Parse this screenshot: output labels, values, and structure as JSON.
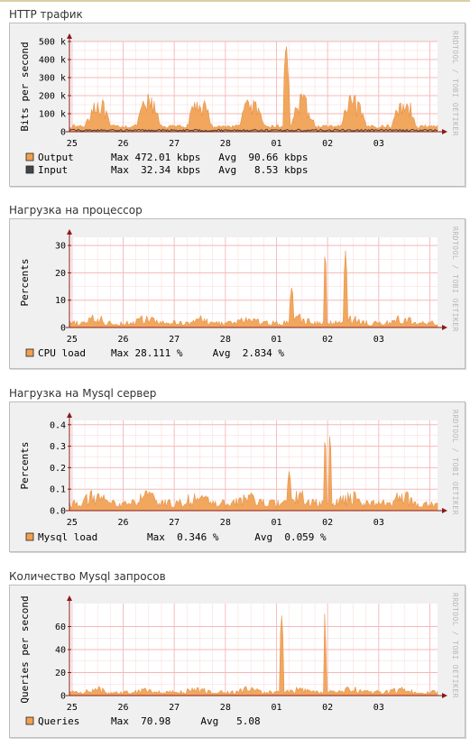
{
  "sections": [
    {
      "title": "HTTP трафик"
    },
    {
      "title": "Нагрузка на процессор"
    },
    {
      "title": "Нагрузка на Mysql сервер"
    },
    {
      "title": "Количество Mysql запросов"
    }
  ],
  "watermark": "RRDTOOL / TOBI OETIKER",
  "colors": {
    "series_fill": "#f0a050",
    "input_line": "#444444",
    "grid": "#f4b8b8",
    "axis": "#8b1a1a",
    "panel_bg": "#f0f0f0",
    "plot_bg": "#ffffff"
  },
  "chart_data": [
    {
      "type": "area",
      "ylabel": "Bits per second",
      "ylim": [
        0,
        500000
      ],
      "yticks": [
        0,
        100000,
        200000,
        300000,
        400000,
        500000
      ],
      "ytick_labels": [
        "0",
        "100 k",
        "200 k",
        "300 k",
        "400 k",
        "500 k"
      ],
      "x_categories": [
        "25",
        "26",
        "27",
        "28",
        "01",
        "02",
        "03"
      ],
      "grid": true,
      "series": [
        {
          "name": "Output",
          "kind": "area",
          "color": "#f0a050",
          "legend_stats": "Max 472.01 kbps   Avg  90.66 kbps",
          "max": 472010,
          "avg": 90660,
          "peak_day": 4.2,
          "spike_days": [
            4.18,
            4.22
          ]
        },
        {
          "name": "Input",
          "kind": "line",
          "color": "#444444",
          "legend_stats": "Max  32.34 kbps   Avg   8.53 kbps",
          "max": 32340,
          "avg": 8530
        }
      ]
    },
    {
      "type": "area",
      "ylabel": "Percents",
      "ylim": [
        0,
        33
      ],
      "yticks": [
        0,
        10,
        20,
        30
      ],
      "ytick_labels": [
        "0",
        "10",
        "20",
        "30"
      ],
      "x_categories": [
        "25",
        "26",
        "27",
        "28",
        "01",
        "02",
        "03"
      ],
      "grid": true,
      "series": [
        {
          "name": "CPU load",
          "kind": "area",
          "color": "#f0a050",
          "legend_stats": "Max 28.111 %     Avg  2.834 %",
          "max": 28.111,
          "avg": 2.834,
          "spike_days": [
            4.3,
            4.95,
            5.35
          ]
        }
      ]
    },
    {
      "type": "area",
      "ylabel": "Percents",
      "ylim": [
        0,
        0.42
      ],
      "yticks": [
        0,
        0.1,
        0.2,
        0.3,
        0.4
      ],
      "ytick_labels": [
        "0.0",
        "0.1",
        "0.2",
        "0.3",
        "0.4"
      ],
      "x_categories": [
        "25",
        "26",
        "27",
        "28",
        "01",
        "02",
        "03"
      ],
      "grid": true,
      "series": [
        {
          "name": "Mysql load",
          "kind": "area",
          "color": "#f0a050",
          "legend_stats": "Max  0.346 %      Avg  0.059 %",
          "max": 0.346,
          "avg": 0.059,
          "spike_days": [
            4.25,
            4.95,
            5.05
          ]
        }
      ]
    },
    {
      "type": "area",
      "ylabel": "Queries per second",
      "ylim": [
        0,
        80
      ],
      "yticks": [
        0,
        20,
        40,
        60
      ],
      "ytick_labels": [
        "0",
        "20",
        "40",
        "60"
      ],
      "x_categories": [
        "25",
        "26",
        "27",
        "28",
        "01",
        "02",
        "03"
      ],
      "grid": true,
      "series": [
        {
          "name": "Queries",
          "kind": "area",
          "color": "#f0a050",
          "legend_stats": "Max  70.98     Avg   5.08",
          "max": 70.98,
          "avg": 5.08,
          "spike_days": [
            4.1,
            4.95
          ]
        }
      ]
    }
  ]
}
